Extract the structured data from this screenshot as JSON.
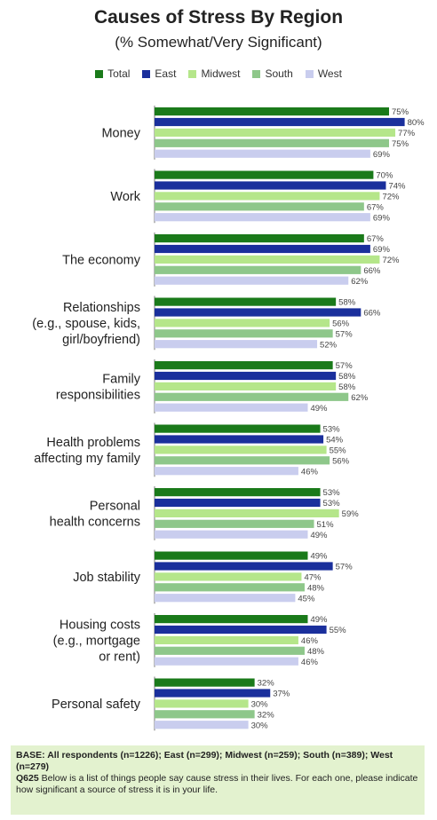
{
  "chart_data": {
    "type": "bar",
    "orientation": "horizontal",
    "title": "Causes of Stress By Region",
    "subtitle": "(% Somewhat/Very Significant)",
    "legend_position": "top",
    "xlim": [
      0,
      100
    ],
    "value_suffix": "%",
    "categories": [
      [
        "Money"
      ],
      [
        "Work"
      ],
      [
        "The economy"
      ],
      [
        "Relationships",
        "(e.g., spouse, kids,",
        "girl/boyfriend)"
      ],
      [
        "Family",
        "responsibilities"
      ],
      [
        "Health problems",
        "affecting my family"
      ],
      [
        "Personal",
        "health concerns"
      ],
      [
        "Job stability"
      ],
      [
        "Housing costs",
        "(e.g., mortgage",
        "or rent)"
      ],
      [
        "Personal safety"
      ]
    ],
    "series": [
      {
        "name": "Total",
        "color": "#1a7a1a",
        "values": [
          75,
          70,
          67,
          58,
          57,
          53,
          53,
          49,
          49,
          32
        ]
      },
      {
        "name": "East",
        "color": "#1a2f9c",
        "values": [
          80,
          74,
          69,
          66,
          58,
          54,
          53,
          57,
          55,
          37
        ]
      },
      {
        "name": "Midwest",
        "color": "#b5e68a",
        "values": [
          77,
          72,
          72,
          56,
          58,
          55,
          59,
          47,
          46,
          30
        ]
      },
      {
        "name": "South",
        "color": "#8ec78a",
        "values": [
          75,
          67,
          66,
          57,
          62,
          56,
          51,
          48,
          48,
          32
        ]
      },
      {
        "name": "West",
        "color": "#c9cdee",
        "values": [
          69,
          69,
          62,
          52,
          49,
          46,
          49,
          45,
          46,
          30
        ]
      }
    ]
  },
  "footer": {
    "base_label": "BASE: All respondents (n=1226); East (n=299); Midwest (n=259); South (n=389); West (n=279)",
    "question_id": "Q625",
    "question_text": "Below is a list of things people say cause stress in their lives. For each one, please indicate how significant a source of stress it is in your life."
  }
}
